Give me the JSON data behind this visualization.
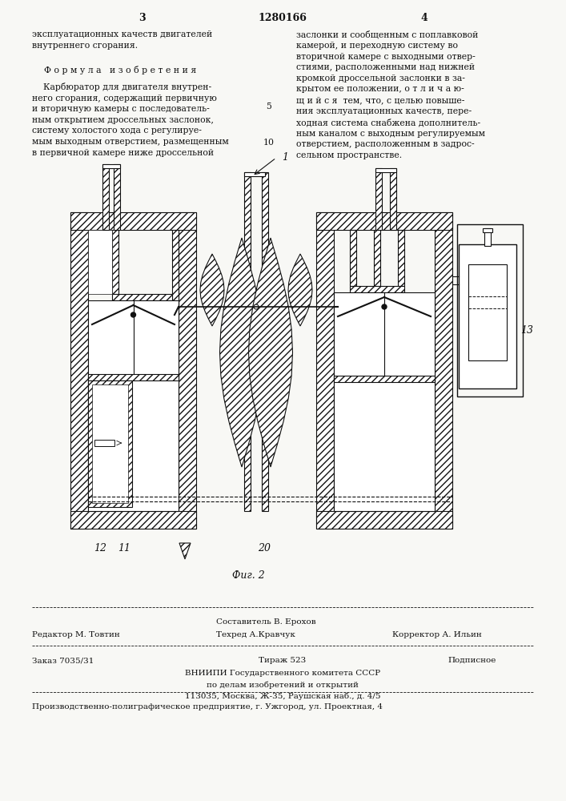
{
  "page_number_left": "3",
  "patent_number": "1280166",
  "page_number_right": "4",
  "left_col_text_top": "эксплуатационных качеств двигателей\nвнутреннего сгорания.",
  "formula_header": "Ф о р м у л а   и з о б р е т е н и я",
  "left_col_body": "    Карбюратор для двигателя внутрен-\nнего сгорания, содержащий первичную\nи вторичную камеры с последователь-\nным открытием дроссельных заслонок,\nсистему холостого хода с регулируе-\nмым выходным отверстием, размещенным\nв первичной камере ниже дроссельной",
  "line_number_5": "5",
  "line_number_10": "10",
  "right_col_text": "заслонки и сообщенным с поплавковой\nкамерой, и переходную систему во\nвторичной камере с выходными отвер-\nстиями, расположенными над нижней\nкромкой дроссельной заслонки в за-\nкрытом ее положении, о т л и ч а ю-\nщ и й с я  тем, что, с целью повыше-\nния эксплуатационных качеств, пере-\nходная система снабжена дополнитель-\nным каналом с выходным регулируемым\nотверстием, расположенным в задрос-\nсельном пространстве.",
  "fig_label": "Фиг. 2",
  "label_1": "1",
  "label_11": "11",
  "label_12": "12",
  "label_13": "13",
  "label_20": "20",
  "editor_line": "Редактор М. Товтин",
  "tech_line": "Техред А.Кравчук",
  "corrector_line": "Корректор А. Ильин",
  "composer_line": "Составитель В. Ерохов",
  "order_line": "Заказ 7035/31",
  "circulation_line": "Тираж 523",
  "subscription_line": "Подписное",
  "vniiipi_line": "ВНИИПИ Государственного комитета СССР",
  "affairs_line": "по делам изобретений и открытий",
  "address_line": "113035, Москва, Ж-35, Раушская наб., д. 4/5",
  "production_line": "Производственно-полиграфическое предприятие, г. Ужгород, ул. Проектная, 4",
  "bg_color": "#f8f8f5",
  "text_color": "#111111",
  "hatch_color": "#444444",
  "line_color": "#111111"
}
